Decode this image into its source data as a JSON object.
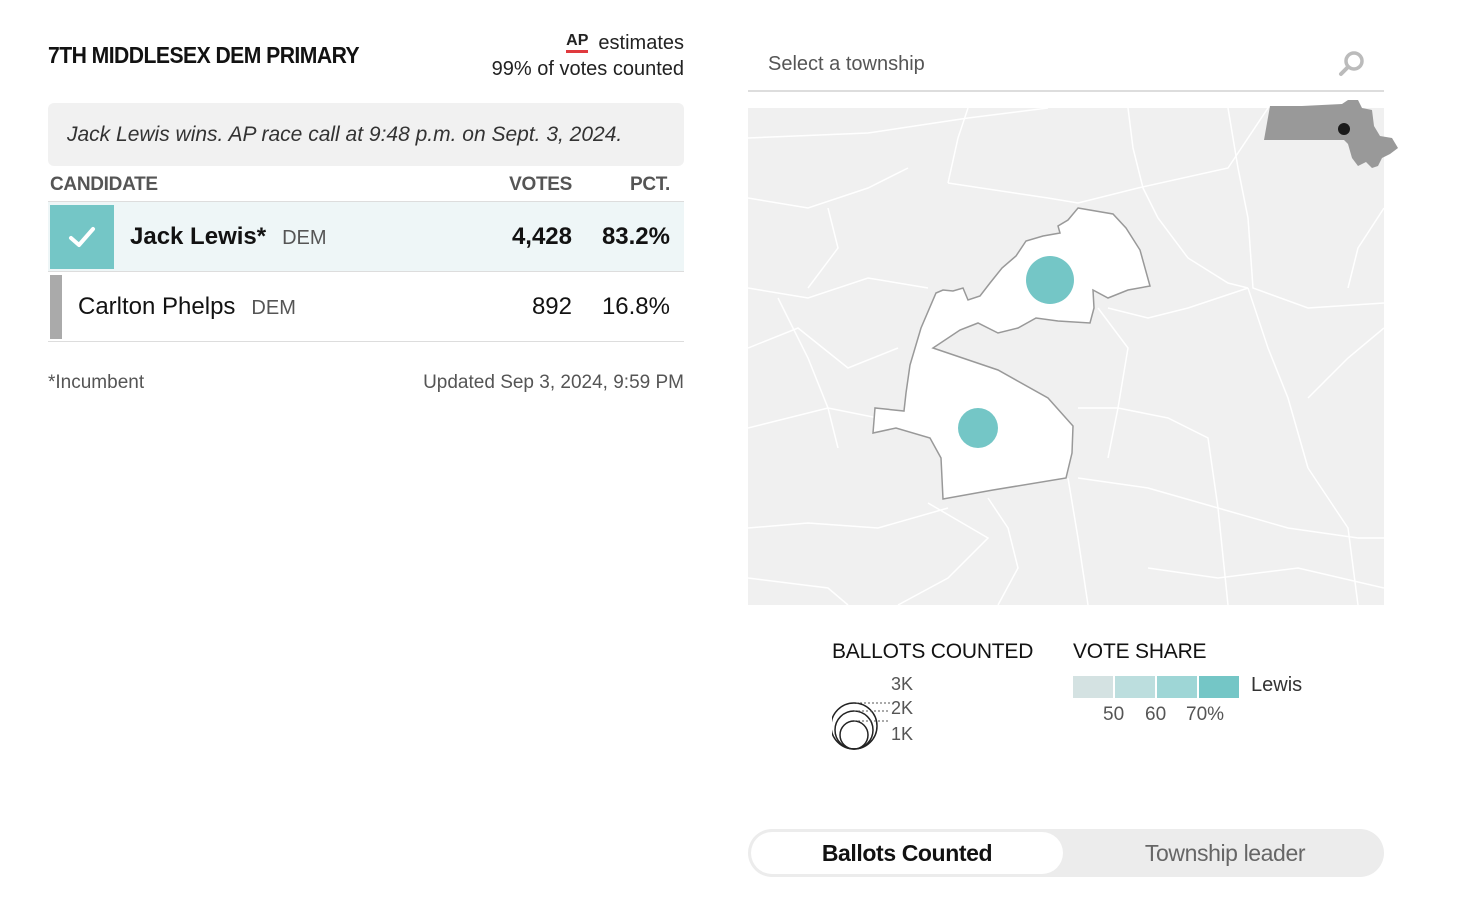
{
  "race": {
    "title": "7TH MIDDLESEX DEM PRIMARY",
    "ap_logo": "AP",
    "estimates_label": "estimates",
    "votes_counted": "99% of votes counted",
    "call_text": "Jack Lewis wins. AP race call at 9:48 p.m. on Sept. 3, 2024."
  },
  "table": {
    "headers": {
      "candidate": "CANDIDATE",
      "votes": "VOTES",
      "pct": "PCT."
    },
    "rows": [
      {
        "name": "Jack Lewis*",
        "party": "DEM",
        "votes": "4,428",
        "pct": "83.2%",
        "winner": true
      },
      {
        "name": "Carlton Phelps",
        "party": "DEM",
        "votes": "892",
        "pct": "16.8%",
        "winner": false
      }
    ]
  },
  "footer": {
    "incumbent_note": "*Incumbent",
    "updated": "Updated Sep 3, 2024, 9:59 PM"
  },
  "search": {
    "placeholder": "Select a township"
  },
  "colors": {
    "winner_accent": "#74c6c6",
    "loser_bar": "#aaaaaa",
    "ap_red": "#e03a3e",
    "map_bg": "#f0f0f0",
    "share_50": "#d4e2e2",
    "share_60": "#bcdede",
    "share_65": "#9ed6d6",
    "share_70": "#74c6c6"
  },
  "legend": {
    "ballots_title": "BALLOTS COUNTED",
    "size_labels": [
      "3K",
      "2K",
      "1K"
    ],
    "share_title": "VOTE SHARE",
    "share_candidate": "Lewis",
    "share_ticks": [
      "50",
      "60",
      "70%"
    ]
  },
  "toggle": {
    "options": [
      "Ballots Counted",
      "Township leader"
    ],
    "selected": "Ballots Counted"
  },
  "icons": {
    "search": "search-icon",
    "check": "check-icon"
  }
}
